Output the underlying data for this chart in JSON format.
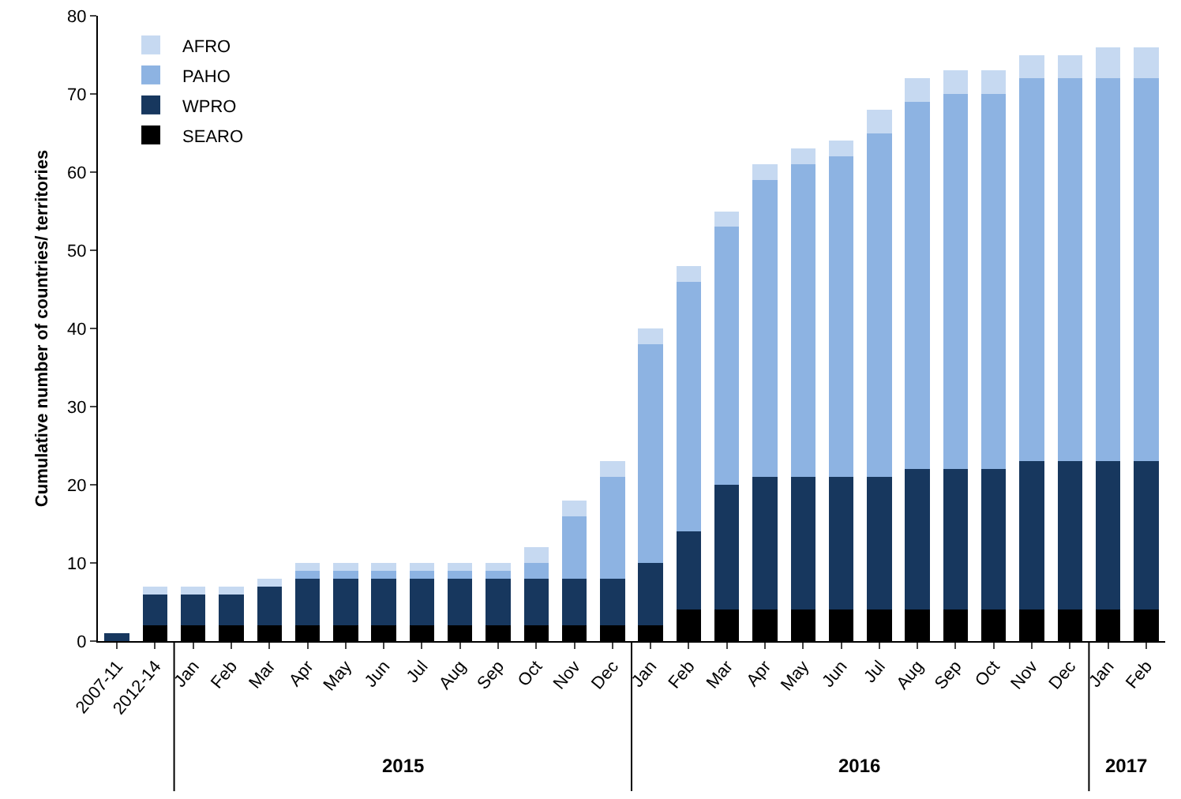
{
  "chart_data": {
    "type": "bar",
    "stacked": true,
    "ylabel": "Cumulative number of countries/ territories",
    "categories": [
      "2007-11",
      "2012-14",
      "Jan",
      "Feb",
      "Mar",
      "Apr",
      "May",
      "Jun",
      "Jul",
      "Aug",
      "Sep",
      "Oct",
      "Nov",
      "Dec",
      "Jan",
      "Feb",
      "Mar",
      "Apr",
      "May",
      "Jun",
      "Jul",
      "Aug",
      "Sep",
      "Oct",
      "Nov",
      "Dec",
      "Jan",
      "Feb"
    ],
    "series": [
      {
        "name": "SEARO",
        "color": "#000000",
        "values": [
          0,
          2,
          2,
          2,
          2,
          2,
          2,
          2,
          2,
          2,
          2,
          2,
          2,
          2,
          2,
          4,
          4,
          4,
          4,
          4,
          4,
          4,
          4,
          4,
          4,
          4,
          4,
          4
        ]
      },
      {
        "name": "WPRO",
        "color": "#17375e",
        "values": [
          1,
          4,
          4,
          4,
          5,
          6,
          6,
          6,
          6,
          6,
          6,
          6,
          6,
          6,
          8,
          10,
          16,
          17,
          17,
          17,
          17,
          18,
          18,
          18,
          19,
          19,
          19,
          19
        ]
      },
      {
        "name": "PAHO",
        "color": "#8db3e2",
        "values": [
          0,
          0,
          0,
          0,
          0,
          1,
          1,
          1,
          1,
          1,
          1,
          2,
          8,
          13,
          28,
          32,
          33,
          38,
          40,
          41,
          44,
          47,
          48,
          48,
          49,
          49,
          49,
          49
        ]
      },
      {
        "name": "AFRO",
        "color": "#c6d9f1",
        "values": [
          0,
          1,
          1,
          1,
          1,
          1,
          1,
          1,
          1,
          1,
          1,
          2,
          2,
          2,
          2,
          2,
          2,
          2,
          2,
          2,
          3,
          3,
          3,
          3,
          3,
          3,
          4,
          4
        ]
      }
    ],
    "annotations": [
      "2015",
      "2016",
      "2017"
    ],
    "ylim": [
      0,
      80
    ],
    "yticks": [
      0,
      10,
      20,
      30,
      40,
      50,
      60,
      70,
      80
    ],
    "grid": false,
    "legend": "top left"
  }
}
